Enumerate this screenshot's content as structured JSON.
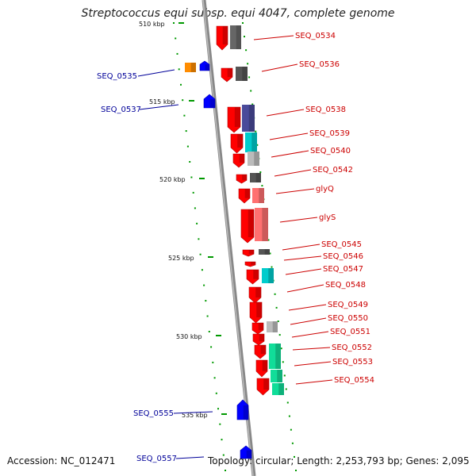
{
  "title": "Streptococcus equi subsp. equi 4047, complete genome",
  "accession_text": "Accession: NC_012471",
  "stats_text": "Topology: circular; Length: 2,253,793 bp; Genes: 2,095",
  "colors": {
    "forward": "#ff0000",
    "reverse": "#0000ff",
    "orange": "#ff8c00",
    "dark_gray": "#555555",
    "mid_gray": "#777777",
    "light_gray": "#bbbbbb",
    "slate": "#4a4a9a",
    "cyan": "#00cccc",
    "pink": "#ff7070",
    "teal": "#11dd99",
    "axis": "#888888",
    "tick": "#009900",
    "label_forward": "#cc0000",
    "label_reverse": "#000099"
  },
  "scale_labels": [
    "510 kbp",
    "515 kbp",
    "520 kbp",
    "525 kbp",
    "530 kbp",
    "535 kbp"
  ],
  "genes": [
    {
      "label": "SEQ_0534",
      "strand": "forward",
      "product_color": "#666666"
    },
    {
      "label": "SEQ_0535",
      "strand": "reverse",
      "product_color": "#ff8c00"
    },
    {
      "label": "SEQ_0536",
      "strand": "forward",
      "product_color": "#555555"
    },
    {
      "label": "SEQ_0537",
      "strand": "reverse",
      "product_color": ""
    },
    {
      "label": "SEQ_0538",
      "strand": "forward",
      "product_color": "#4a4a9a"
    },
    {
      "label": "SEQ_0539",
      "strand": "forward",
      "product_color": "#00cccc"
    },
    {
      "label": "SEQ_0540",
      "strand": "forward",
      "product_color": "#bbbbbb"
    },
    {
      "label": "SEQ_0542",
      "strand": "forward",
      "product_color": "#555555"
    },
    {
      "label": "glyQ",
      "strand": "forward",
      "product_color": "#ff7070"
    },
    {
      "label": "glyS",
      "strand": "forward",
      "product_color": "#ff7070"
    },
    {
      "label": "SEQ_0545",
      "strand": "forward",
      "product_color": "#555555"
    },
    {
      "label": "SEQ_0546",
      "strand": "forward",
      "product_color": ""
    },
    {
      "label": "SEQ_0547",
      "strand": "forward",
      "product_color": "#00cccc"
    },
    {
      "label": "SEQ_0548",
      "strand": "forward",
      "product_color": ""
    },
    {
      "label": "SEQ_0549",
      "strand": "forward",
      "product_color": ""
    },
    {
      "label": "SEQ_0550",
      "strand": "forward",
      "product_color": "#bbbbbb"
    },
    {
      "label": "SEQ_0551",
      "strand": "forward",
      "product_color": ""
    },
    {
      "label": "SEQ_0552",
      "strand": "forward",
      "product_color": "#11dd99"
    },
    {
      "label": "SEQ_0553",
      "strand": "forward",
      "product_color": "#11dd99"
    },
    {
      "label": "SEQ_0554",
      "strand": "forward",
      "product_color": "#11dd99"
    },
    {
      "label": "SEQ_0555",
      "strand": "reverse",
      "product_color": ""
    },
    {
      "label": "SEQ_0557",
      "strand": "reverse",
      "product_color": ""
    }
  ]
}
